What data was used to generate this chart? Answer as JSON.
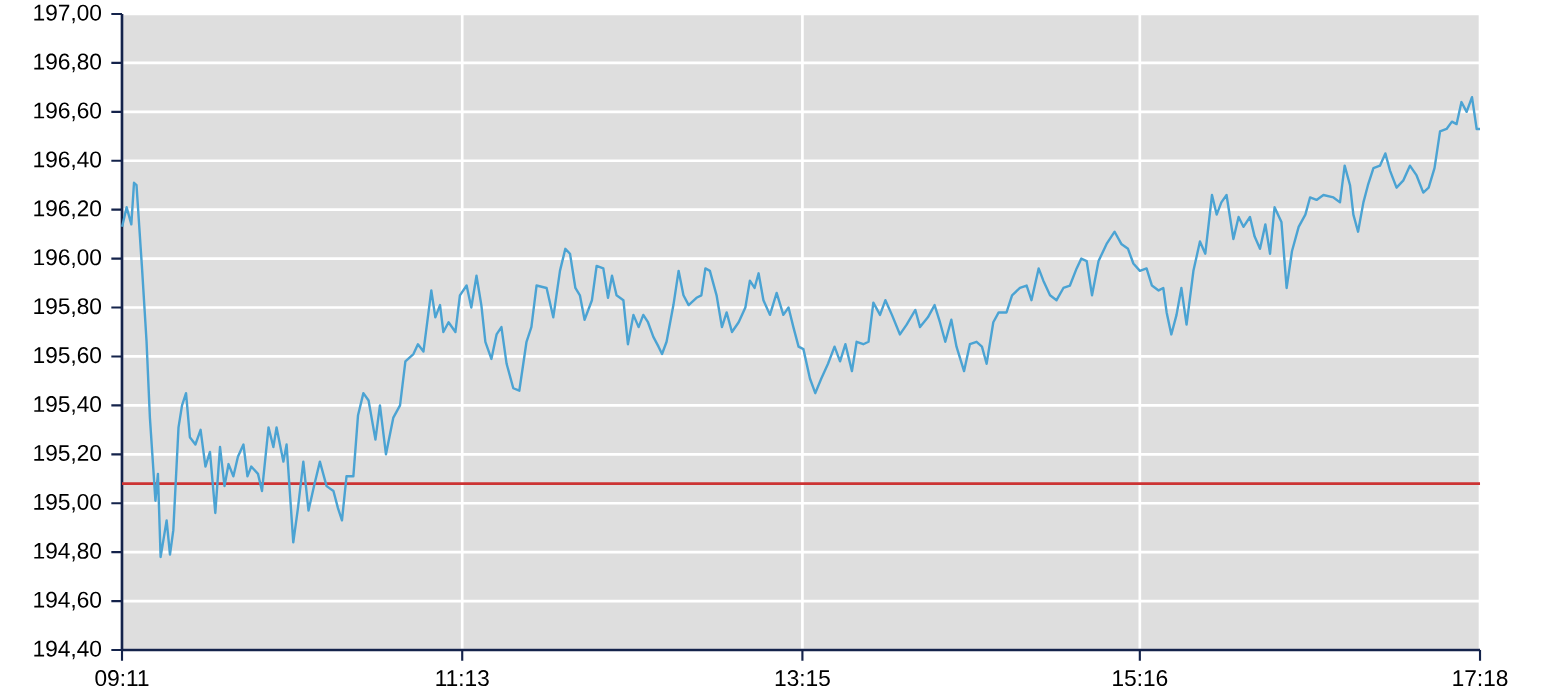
{
  "chart_data": {
    "type": "line",
    "color": "#4ba3d3",
    "x": [
      9.184,
      9.211,
      9.239,
      9.255,
      9.27,
      9.303,
      9.33,
      9.35,
      9.383,
      9.398,
      9.414,
      9.45,
      9.47,
      9.49,
      9.521,
      9.542,
      9.566,
      9.589,
      9.622,
      9.653,
      9.682,
      9.709,
      9.741,
      9.769,
      9.796,
      9.82,
      9.849,
      9.876,
      9.909,
      9.933,
      9.956,
      9.996,
      10.02,
      10.059,
      10.088,
      10.107,
      10.148,
      10.167,
      10.187,
      10.207,
      10.235,
      10.267,
      10.298,
      10.331,
      10.366,
      10.406,
      10.447,
      10.474,
      10.498,
      10.525,
      10.566,
      10.594,
      10.626,
      10.657,
      10.698,
      10.725,
      10.761,
      10.805,
      10.845,
      10.877,
      10.925,
      10.952,
      10.985,
      11.032,
      11.056,
      11.084,
      11.104,
      11.135,
      11.176,
      11.203,
      11.243,
      11.271,
      11.302,
      11.331,
      11.355,
      11.391,
      11.422,
      11.451,
      11.482,
      11.522,
      11.558,
      11.601,
      11.63,
      11.661,
      11.721,
      11.761,
      11.801,
      11.833,
      11.861,
      11.893,
      11.92,
      11.948,
      11.992,
      12.02,
      12.06,
      12.088,
      12.112,
      12.139,
      12.18,
      12.207,
      12.24,
      12.271,
      12.299,
      12.327,
      12.359,
      12.39,
      12.411,
      12.438,
      12.479,
      12.51,
      12.539,
      12.57,
      12.617,
      12.646,
      12.67,
      12.697,
      12.737,
      12.769,
      12.797,
      12.829,
      12.869,
      12.909,
      12.936,
      12.964,
      12.988,
      13.017,
      13.056,
      13.096,
      13.136,
      13.167,
      13.196,
      13.227,
      13.256,
      13.295,
      13.327,
      13.363,
      13.403,
      13.442,
      13.475,
      13.507,
      13.546,
      13.574,
      13.614,
      13.645,
      13.674,
      13.714,
      13.746,
      13.785,
      13.833,
      13.873,
      13.925,
      13.953,
      14.0,
      14.04,
      14.072,
      14.104,
      14.14,
      14.171,
      14.216,
      14.251,
      14.291,
      14.323,
      14.351,
      14.391,
      14.423,
      14.47,
      14.503,
      14.55,
      14.59,
      14.619,
      14.662,
      14.69,
      14.73,
      14.769,
      14.81,
      14.849,
      14.889,
      14.917,
      14.949,
      14.981,
      15.02,
      15.068,
      15.116,
      15.156,
      15.196,
      15.228,
      15.267,
      15.307,
      15.339,
      15.379,
      15.407,
      15.427,
      15.455,
      15.486,
      15.515,
      15.546,
      15.587,
      15.626,
      15.658,
      15.698,
      15.726,
      15.754,
      15.785,
      15.826,
      15.857,
      15.886,
      15.925,
      15.953,
      15.985,
      16.017,
      16.045,
      16.072,
      16.113,
      16.144,
      16.176,
      16.216,
      16.256,
      16.284,
      16.323,
      16.364,
      16.424,
      16.463,
      16.491,
      16.523,
      16.543,
      16.571,
      16.603,
      16.63,
      16.663,
      16.702,
      16.734,
      16.762,
      16.801,
      16.842,
      16.881,
      16.921,
      16.961,
      16.993,
      17.028,
      17.061,
      17.1,
      17.132,
      17.16,
      17.189,
      17.22,
      17.252,
      17.28,
      17.3
    ],
    "values": [
      196.13,
      196.21,
      196.14,
      196.31,
      196.3,
      195.96,
      195.66,
      195.35,
      195.01,
      195.12,
      194.78,
      194.93,
      194.79,
      194.89,
      195.31,
      195.4,
      195.45,
      195.27,
      195.24,
      195.3,
      195.15,
      195.21,
      194.96,
      195.23,
      195.07,
      195.16,
      195.11,
      195.19,
      195.24,
      195.11,
      195.15,
      195.12,
      195.05,
      195.31,
      195.23,
      195.31,
      195.17,
      195.24,
      195.04,
      194.84,
      194.98,
      195.17,
      194.97,
      195.07,
      195.17,
      195.07,
      195.05,
      194.98,
      194.93,
      195.11,
      195.11,
      195.36,
      195.45,
      195.42,
      195.26,
      195.4,
      195.2,
      195.35,
      195.4,
      195.58,
      195.61,
      195.65,
      195.62,
      195.87,
      195.76,
      195.81,
      195.7,
      195.74,
      195.7,
      195.85,
      195.89,
      195.8,
      195.93,
      195.81,
      195.66,
      195.59,
      195.69,
      195.72,
      195.57,
      195.47,
      195.46,
      195.66,
      195.72,
      195.89,
      195.88,
      195.76,
      195.95,
      196.04,
      196.02,
      195.88,
      195.85,
      195.75,
      195.83,
      195.97,
      195.96,
      195.84,
      195.93,
      195.85,
      195.83,
      195.65,
      195.77,
      195.72,
      195.77,
      195.74,
      195.68,
      195.64,
      195.61,
      195.66,
      195.81,
      195.95,
      195.85,
      195.81,
      195.84,
      195.85,
      195.96,
      195.95,
      195.85,
      195.72,
      195.78,
      195.7,
      195.74,
      195.8,
      195.91,
      195.88,
      195.94,
      195.83,
      195.77,
      195.86,
      195.77,
      195.8,
      195.72,
      195.64,
      195.63,
      195.51,
      195.45,
      195.51,
      195.57,
      195.64,
      195.58,
      195.65,
      195.54,
      195.66,
      195.65,
      195.66,
      195.82,
      195.77,
      195.83,
      195.77,
      195.69,
      195.73,
      195.79,
      195.72,
      195.76,
      195.81,
      195.74,
      195.66,
      195.75,
      195.64,
      195.54,
      195.65,
      195.66,
      195.64,
      195.57,
      195.74,
      195.78,
      195.78,
      195.85,
      195.88,
      195.89,
      195.83,
      195.96,
      195.91,
      195.85,
      195.83,
      195.88,
      195.89,
      195.96,
      196.0,
      195.99,
      195.85,
      195.99,
      196.06,
      196.11,
      196.06,
      196.04,
      195.98,
      195.95,
      195.96,
      195.89,
      195.87,
      195.88,
      195.78,
      195.69,
      195.77,
      195.88,
      195.73,
      195.95,
      196.07,
      196.02,
      196.26,
      196.18,
      196.23,
      196.26,
      196.08,
      196.17,
      196.13,
      196.17,
      196.09,
      196.04,
      196.14,
      196.02,
      196.21,
      196.15,
      195.88,
      196.03,
      196.13,
      196.18,
      196.25,
      196.24,
      196.26,
      196.25,
      196.23,
      196.38,
      196.3,
      196.18,
      196.11,
      196.23,
      196.3,
      196.37,
      196.38,
      196.43,
      196.36,
      196.29,
      196.32,
      196.38,
      196.34,
      196.27,
      196.29,
      196.37,
      196.52,
      196.53,
      196.56,
      196.55,
      196.64,
      196.6,
      196.66,
      196.53,
      196.53
    ],
    "xlim": [
      9.1833,
      17.3
    ],
    "xticks": [
      {
        "value": 9.1833,
        "label": "09:11"
      },
      {
        "value": 11.2167,
        "label": "11:13"
      },
      {
        "value": 13.25,
        "label": "13:15"
      },
      {
        "value": 15.2667,
        "label": "15:16"
      },
      {
        "value": 17.3,
        "label": "17:18"
      }
    ],
    "ylim": [
      194.4,
      197.0
    ],
    "yticks": [
      {
        "value": 194.4,
        "label": "194,40"
      },
      {
        "value": 194.6,
        "label": "194,60"
      },
      {
        "value": 194.8,
        "label": "194,80"
      },
      {
        "value": 195.0,
        "label": "195,00"
      },
      {
        "value": 195.2,
        "label": "195,20"
      },
      {
        "value": 195.4,
        "label": "195,40"
      },
      {
        "value": 195.6,
        "label": "195,60"
      },
      {
        "value": 195.8,
        "label": "195,80"
      },
      {
        "value": 196.0,
        "label": "196,00"
      },
      {
        "value": 196.2,
        "label": "196,20"
      },
      {
        "value": 196.4,
        "label": "196,40"
      },
      {
        "value": 196.6,
        "label": "196,60"
      },
      {
        "value": 196.8,
        "label": "196,80"
      },
      {
        "value": 197.0,
        "label": "197,00"
      }
    ],
    "grid": true,
    "ref_lines": [
      {
        "axis": "y",
        "value": 195.08,
        "color": "#cc3333"
      }
    ]
  }
}
